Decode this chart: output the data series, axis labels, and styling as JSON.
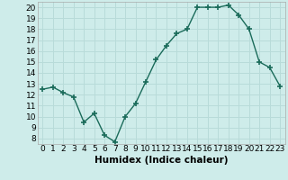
{
  "x": [
    0,
    1,
    2,
    3,
    4,
    5,
    6,
    7,
    8,
    9,
    10,
    11,
    12,
    13,
    14,
    15,
    16,
    17,
    18,
    19,
    20,
    21,
    22,
    23
  ],
  "y": [
    12.5,
    12.7,
    12.2,
    11.8,
    9.5,
    10.3,
    8.3,
    7.7,
    10.0,
    11.2,
    13.2,
    15.2,
    16.5,
    17.6,
    18.0,
    20.0,
    20.0,
    20.0,
    20.2,
    19.3,
    18.0,
    15.0,
    14.5,
    12.8
  ],
  "xlabel": "Humidex (Indice chaleur)",
  "xlim": [
    -0.5,
    23.5
  ],
  "ylim": [
    7.5,
    20.5
  ],
  "yticks": [
    8,
    9,
    10,
    11,
    12,
    13,
    14,
    15,
    16,
    17,
    18,
    19,
    20
  ],
  "xticks": [
    0,
    1,
    2,
    3,
    4,
    5,
    6,
    7,
    8,
    9,
    10,
    11,
    12,
    13,
    14,
    15,
    16,
    17,
    18,
    19,
    20,
    21,
    22,
    23
  ],
  "line_color": "#1a6b5a",
  "marker": "+",
  "marker_size": 4,
  "marker_lw": 1.2,
  "line_width": 1.0,
  "bg_color": "#ceecea",
  "grid_color": "#b8dbd9",
  "xlabel_fontsize": 7.5,
  "tick_fontsize": 6.5
}
